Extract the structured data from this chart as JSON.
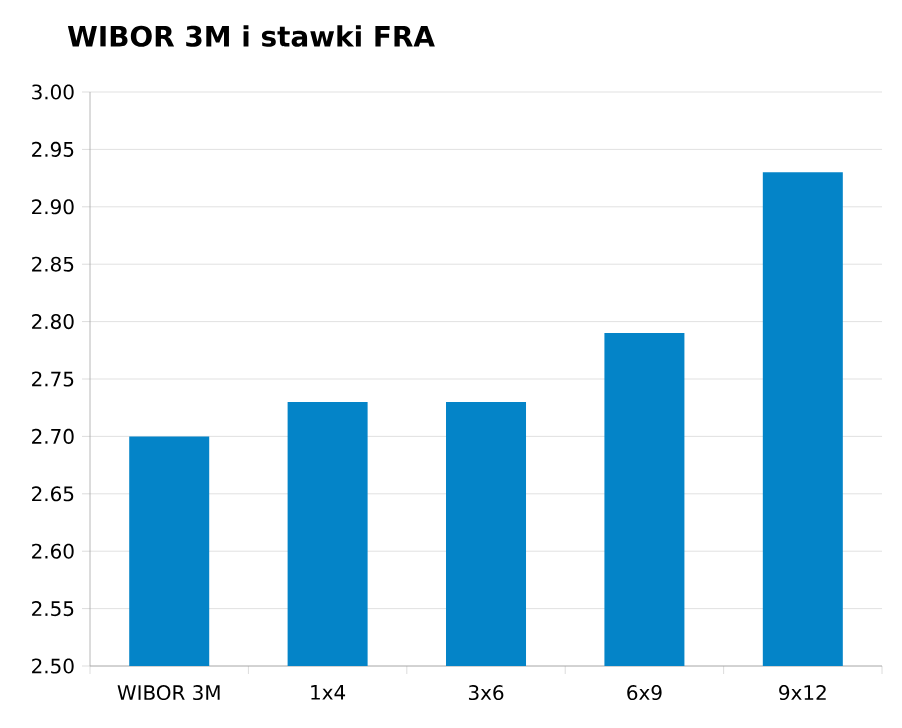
{
  "chart_data": {
    "type": "bar",
    "title": "WIBOR 3M i stawki FRA",
    "categories": [
      "WIBOR 3M",
      "1x4",
      "3x6",
      "6x9",
      "9x12"
    ],
    "values": [
      2.7,
      2.73,
      2.73,
      2.79,
      2.93
    ],
    "color": "#0484c8",
    "ylim": [
      2.5,
      3.0
    ],
    "yticks": [
      {
        "value": 2.5,
        "label": "2.50"
      },
      {
        "value": 2.55,
        "label": "2.55"
      },
      {
        "value": 2.6,
        "label": "2.60"
      },
      {
        "value": 2.65,
        "label": "2.65"
      },
      {
        "value": 2.7,
        "label": "2.70"
      },
      {
        "value": 2.75,
        "label": "2.75"
      },
      {
        "value": 2.8,
        "label": "2.80"
      },
      {
        "value": 2.85,
        "label": "2.85"
      },
      {
        "value": 2.9,
        "label": "2.90"
      },
      {
        "value": 2.95,
        "label": "2.95"
      },
      {
        "value": 3.0,
        "label": "3.00"
      }
    ],
    "grid": "y"
  }
}
